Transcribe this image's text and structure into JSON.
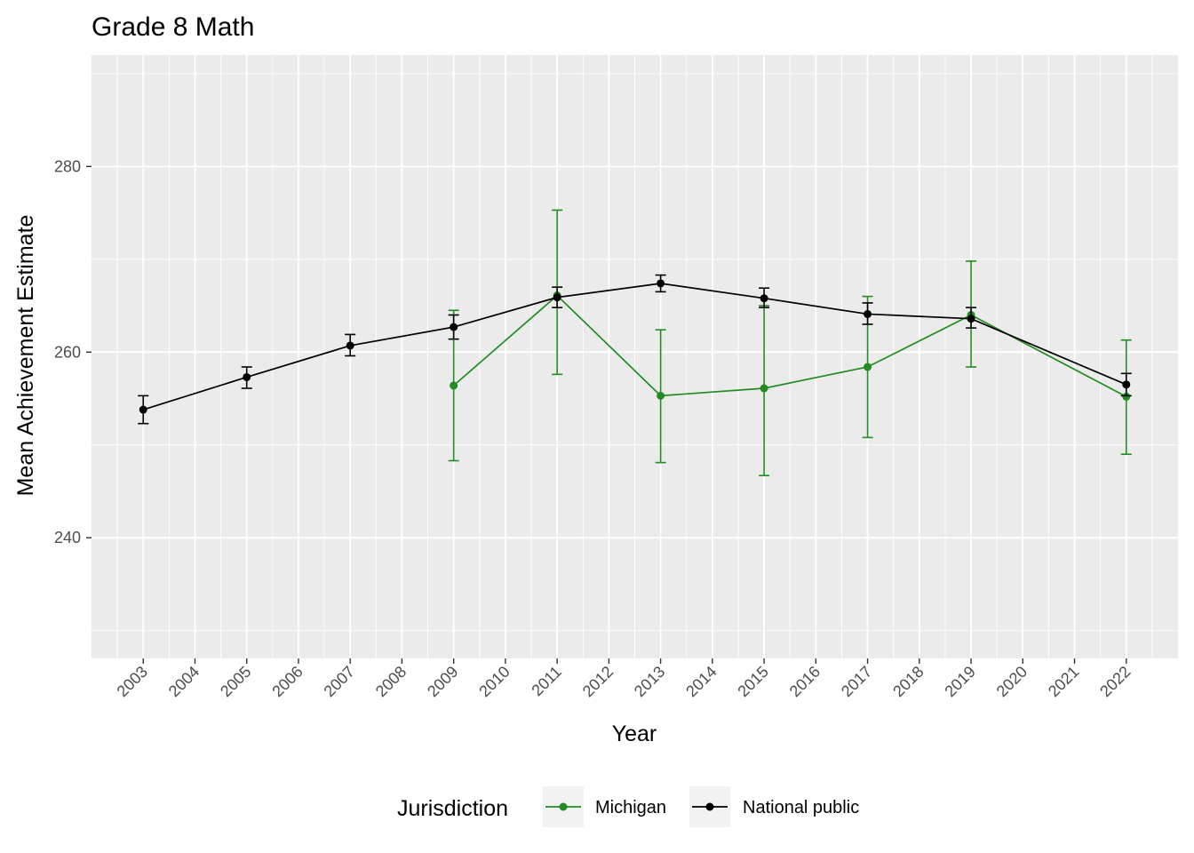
{
  "chart_data": {
    "type": "line",
    "title": "Grade 8 Math",
    "xlabel": "Year",
    "ylabel": "Mean Achievement Estimate",
    "x_ticks": [
      2003,
      2004,
      2005,
      2006,
      2007,
      2008,
      2009,
      2010,
      2011,
      2012,
      2013,
      2014,
      2015,
      2016,
      2017,
      2018,
      2019,
      2020,
      2021,
      2022
    ],
    "xlim": [
      2002,
      2023
    ],
    "ylim": [
      227,
      292
    ],
    "y_ticks": [
      240,
      260,
      280
    ],
    "grid": true,
    "legend": {
      "title": "Jurisdiction",
      "position": "bottom"
    },
    "series": [
      {
        "name": "Michigan",
        "color": "#228b22",
        "points": [
          {
            "x": 2009,
            "y": 256.4,
            "lo": 248.3,
            "hi": 264.5
          },
          {
            "x": 2011,
            "y": 266.1,
            "lo": 257.6,
            "hi": 275.3
          },
          {
            "x": 2013,
            "y": 255.3,
            "lo": 248.1,
            "hi": 262.4
          },
          {
            "x": 2015,
            "y": 256.1,
            "lo": 246.7,
            "hi": 265.0
          },
          {
            "x": 2017,
            "y": 258.4,
            "lo": 250.8,
            "hi": 266.0
          },
          {
            "x": 2019,
            "y": 264.0,
            "lo": 258.4,
            "hi": 269.8
          },
          {
            "x": 2022,
            "y": 255.2,
            "lo": 249.0,
            "hi": 261.3
          }
        ]
      },
      {
        "name": "National public",
        "color": "#000000",
        "points": [
          {
            "x": 2003,
            "y": 253.8,
            "lo": 252.3,
            "hi": 255.3
          },
          {
            "x": 2005,
            "y": 257.3,
            "lo": 256.1,
            "hi": 258.4
          },
          {
            "x": 2007,
            "y": 260.7,
            "lo": 259.6,
            "hi": 261.9
          },
          {
            "x": 2009,
            "y": 262.7,
            "lo": 261.4,
            "hi": 264.0
          },
          {
            "x": 2011,
            "y": 265.9,
            "lo": 264.8,
            "hi": 267.0
          },
          {
            "x": 2013,
            "y": 267.4,
            "lo": 266.5,
            "hi": 268.3
          },
          {
            "x": 2015,
            "y": 265.8,
            "lo": 264.8,
            "hi": 266.9
          },
          {
            "x": 2017,
            "y": 264.1,
            "lo": 263.0,
            "hi": 265.3
          },
          {
            "x": 2019,
            "y": 263.6,
            "lo": 262.6,
            "hi": 264.8
          },
          {
            "x": 2022,
            "y": 256.5,
            "lo": 255.3,
            "hi": 257.7
          }
        ]
      }
    ]
  }
}
